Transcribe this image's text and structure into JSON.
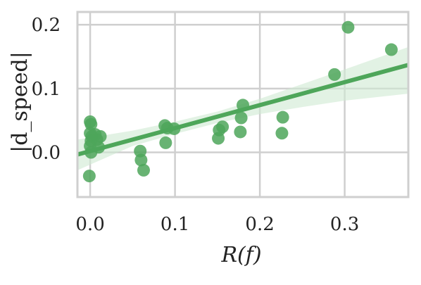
{
  "chart_data": {
    "type": "scatter",
    "title": "",
    "xlabel": "R(f)",
    "ylabel": "|d_speed|",
    "xlim": [
      -0.015,
      0.375
    ],
    "ylim": [
      -0.07,
      0.22
    ],
    "x_ticks": [
      0.0,
      0.1,
      0.2,
      0.3
    ],
    "x_tick_labels": [
      "0.0",
      "0.1",
      "0.2",
      "0.3"
    ],
    "y_ticks": [
      0.0,
      0.1,
      0.2
    ],
    "y_tick_labels": [
      "0.0",
      "0.1",
      "0.2"
    ],
    "grid": true,
    "legend": "none",
    "regression": {
      "slope": 0.36,
      "intercept": 0.002,
      "x_range": [
        -0.015,
        0.375
      ],
      "ci_lower": [
        [
          -0.015,
          -0.028
        ],
        [
          0.05,
          0.01
        ],
        [
          0.1,
          0.029
        ],
        [
          0.15,
          0.046
        ],
        [
          0.2,
          0.06
        ],
        [
          0.25,
          0.071
        ],
        [
          0.3,
          0.081
        ],
        [
          0.375,
          0.092
        ]
      ],
      "ci_upper": [
        [
          -0.015,
          0.02
        ],
        [
          0.05,
          0.034
        ],
        [
          0.1,
          0.048
        ],
        [
          0.15,
          0.064
        ],
        [
          0.2,
          0.084
        ],
        [
          0.25,
          0.107
        ],
        [
          0.3,
          0.13
        ],
        [
          0.375,
          0.165
        ]
      ]
    },
    "colors": {
      "points": "#4ea65a",
      "line": "#4ea65a",
      "band": "#cfe9d2",
      "grid": "#cfcfcf",
      "frame": "#cfcfcf"
    },
    "points": [
      {
        "x": 0.0,
        "y": 0.048
      },
      {
        "x": 0.001,
        "y": 0.044
      },
      {
        "x": 0.0,
        "y": 0.03
      },
      {
        "x": 0.002,
        "y": 0.025
      },
      {
        "x": 0.001,
        "y": 0.018
      },
      {
        "x": 0.0,
        "y": 0.01
      },
      {
        "x": 0.001,
        "y": 0.0
      },
      {
        "x": -0.001,
        "y": -0.037
      },
      {
        "x": 0.008,
        "y": 0.02
      },
      {
        "x": 0.01,
        "y": 0.008
      },
      {
        "x": 0.012,
        "y": 0.025
      },
      {
        "x": 0.006,
        "y": 0.028
      },
      {
        "x": 0.059,
        "y": 0.002
      },
      {
        "x": 0.06,
        "y": -0.012
      },
      {
        "x": 0.063,
        "y": -0.028
      },
      {
        "x": 0.088,
        "y": 0.042
      },
      {
        "x": 0.091,
        "y": 0.038
      },
      {
        "x": 0.089,
        "y": 0.015
      },
      {
        "x": 0.099,
        "y": 0.037
      },
      {
        "x": 0.152,
        "y": 0.035
      },
      {
        "x": 0.151,
        "y": 0.022
      },
      {
        "x": 0.156,
        "y": 0.04
      },
      {
        "x": 0.178,
        "y": 0.054
      },
      {
        "x": 0.18,
        "y": 0.074
      },
      {
        "x": 0.177,
        "y": 0.032
      },
      {
        "x": 0.227,
        "y": 0.055
      },
      {
        "x": 0.226,
        "y": 0.03
      },
      {
        "x": 0.288,
        "y": 0.122
      },
      {
        "x": 0.304,
        "y": 0.196
      },
      {
        "x": 0.355,
        "y": 0.161
      }
    ]
  }
}
